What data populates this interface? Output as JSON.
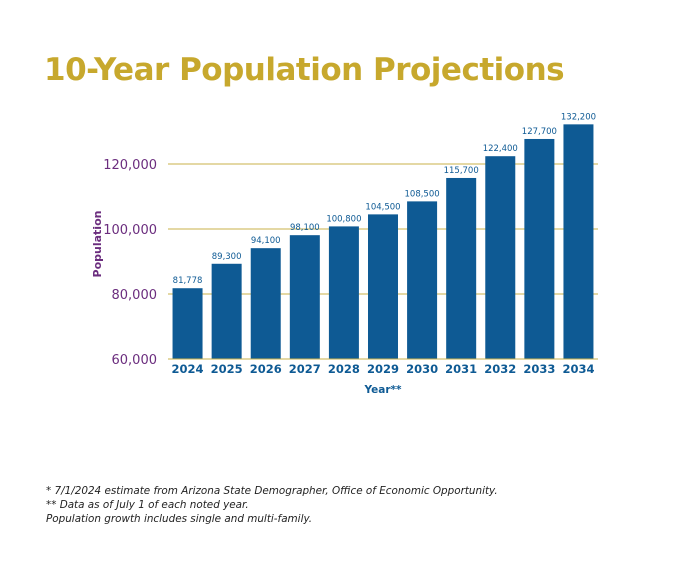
{
  "colors": {
    "title": "#c7a82d",
    "bar": "#0e5a94",
    "data_label": "#0e5a94",
    "axis_text": "#6b2d7e",
    "x_tick_text": "#0e5a94",
    "gridline": "#c9b14a"
  },
  "chart_data": {
    "type": "bar",
    "title": "10-Year Population Projections",
    "xlabel": "Year**",
    "ylabel": "Population",
    "ylim": [
      60000,
      132200
    ],
    "yticks": [
      60000,
      80000,
      100000,
      120000
    ],
    "ytick_labels": [
      "60,000",
      "80,000",
      "100,000",
      "120,000"
    ],
    "grid": "horizontal",
    "categories": [
      "2024",
      "2025",
      "2026",
      "2027",
      "2028",
      "2029",
      "2030",
      "2031",
      "2032",
      "2033",
      "2034"
    ],
    "values": [
      81778,
      89300,
      94100,
      98100,
      100800,
      104500,
      108500,
      115700,
      122400,
      127700,
      132200
    ],
    "data_labels": [
      "81,778",
      "89,300",
      "94,100",
      "98,100",
      "100,800",
      "104,500",
      "108,500",
      "115,700",
      "122,400",
      "127,700",
      "132,200"
    ]
  },
  "footnotes": {
    "line1": "* 7/1/2024 estimate from Arizona State Demographer, Office of Economic Opportunity.",
    "line2": "** Data as of July 1 of each noted year.",
    "line3": "Population growth includes single and multi-family."
  }
}
